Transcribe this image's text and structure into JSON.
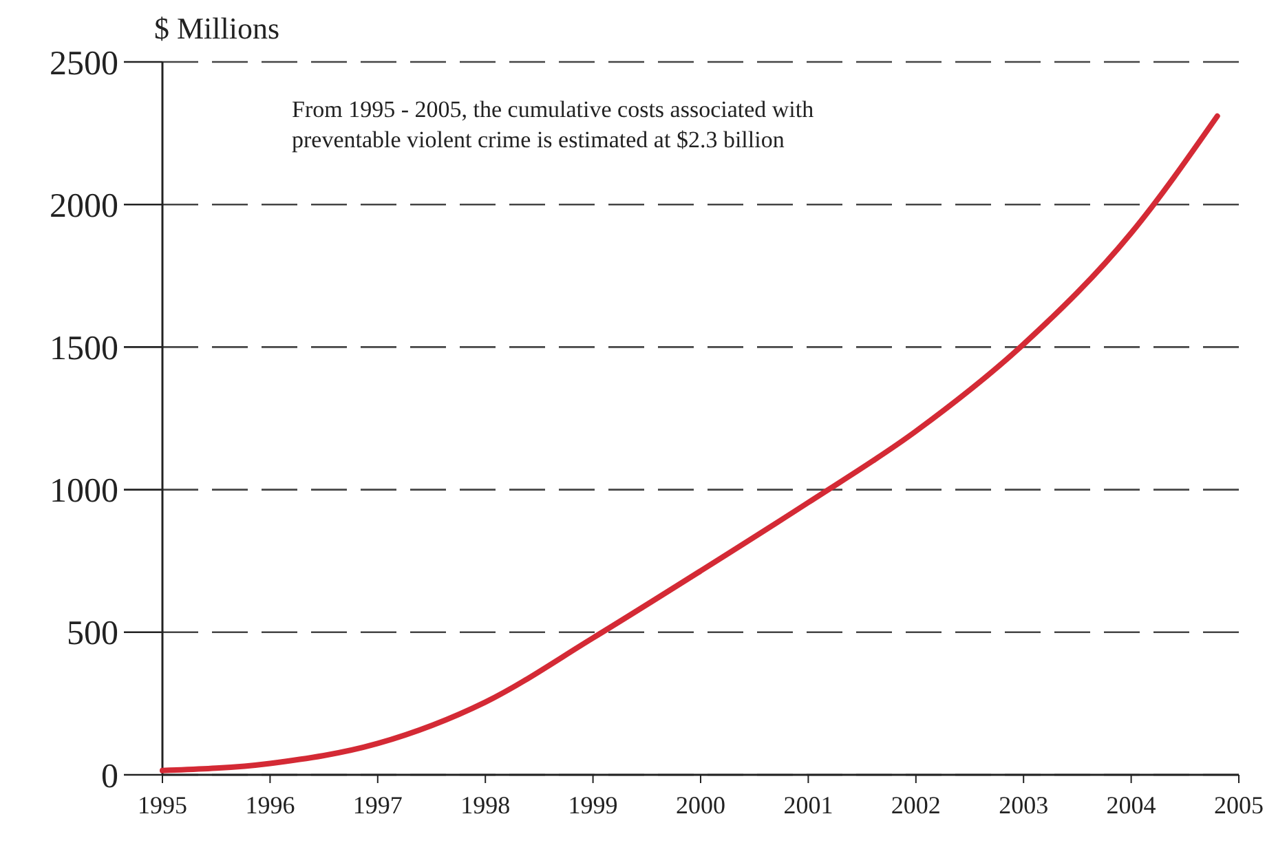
{
  "chart_data": {
    "type": "line",
    "ylabel": "$ Millions",
    "annotations": [
      "From 1995 - 2005, the cumulative costs associated with preventable violent crime is estimated at $2.3 billion"
    ],
    "x": [
      1995,
      1996,
      1997,
      1998,
      1999,
      2000,
      2001,
      2002,
      2003,
      2004,
      2004.8
    ],
    "series": [
      {
        "color": "#d42a35",
        "values": [
          15,
          40,
          110,
          255,
          480,
          715,
          955,
          1205,
          1510,
          1900,
          2310
        ]
      }
    ],
    "xlim": [
      1995,
      2005
    ],
    "xticks": [
      1995,
      1996,
      1997,
      1998,
      1999,
      2000,
      2001,
      2002,
      2003,
      2004,
      2005
    ],
    "ylim": [
      0,
      2500
    ],
    "yticks": [
      0,
      500,
      1000,
      1500,
      2000,
      2500
    ],
    "grid": "y",
    "marker": "none",
    "line_style": "solid"
  }
}
